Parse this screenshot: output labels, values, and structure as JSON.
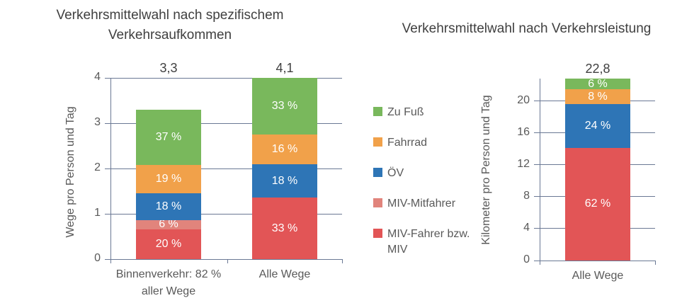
{
  "colors": {
    "green": "#79B85C",
    "orange": "#F1A14A",
    "blue": "#2E75B6",
    "salmon": "#E1847C",
    "red": "#E25556",
    "grid": "#6A7894",
    "title_text": "#404040",
    "axis_text": "#595959",
    "data_label_text": "#FFFFFF"
  },
  "legend": {
    "items": [
      {
        "label": "Zu Fuß",
        "color_key": "green"
      },
      {
        "label": "Fahrrad",
        "color_key": "orange"
      },
      {
        "label": "ÖV",
        "color_key": "blue"
      },
      {
        "label": "MIV-Mitfahrer",
        "color_key": "salmon"
      },
      {
        "label": "MIV-Fahrer bzw. MIV",
        "color_key": "red"
      }
    ]
  },
  "chart_data": [
    {
      "type": "bar",
      "stacked": true,
      "title": "Verkehrsmittelwahl nach spezifischem Verkehrsaufkommen",
      "ylabel": "Wege pro Person und Tag",
      "ylim": [
        0,
        4
      ],
      "ytick_values": [
        0,
        1,
        2,
        3,
        4
      ],
      "ytick_labels": [
        "0",
        "1",
        "2",
        "3",
        "4"
      ],
      "grid": true,
      "categories": [
        {
          "label": "Binnenverkehr: 82 % aller Wege",
          "total": 3.3,
          "total_label": "3,3",
          "segments": [
            {
              "name": "MIV-Fahrer bzw. MIV",
              "color_key": "red",
              "pct": 20,
              "label": "20 %"
            },
            {
              "name": "MIV-Mitfahrer",
              "color_key": "salmon",
              "pct": 6,
              "label": "6 %"
            },
            {
              "name": "ÖV",
              "color_key": "blue",
              "pct": 18,
              "label": "18 %"
            },
            {
              "name": "Fahrrad",
              "color_key": "orange",
              "pct": 19,
              "label": "19 %"
            },
            {
              "name": "Zu Fuß",
              "color_key": "green",
              "pct": 37,
              "label": "37 %"
            }
          ]
        },
        {
          "label": "Alle Wege",
          "total": 4.1,
          "total_label": "4,1",
          "segments": [
            {
              "name": "MIV-Fahrer bzw. MIV",
              "color_key": "red",
              "pct": 33,
              "label": "33 %"
            },
            {
              "name": "ÖV",
              "color_key": "blue",
              "pct": 18,
              "label": "18 %"
            },
            {
              "name": "Fahrrad",
              "color_key": "orange",
              "pct": 16,
              "label": "16 %"
            },
            {
              "name": "Zu Fuß",
              "color_key": "green",
              "pct": 33,
              "label": "33 %"
            }
          ]
        }
      ]
    },
    {
      "type": "bar",
      "stacked": true,
      "title": "Verkehrsmittelwahl nach Verkehrsleistung",
      "ylabel": "Kilometer pro Person und Tag",
      "ylim": [
        0,
        22.8
      ],
      "ytick_values": [
        0,
        4,
        8,
        12,
        16,
        20
      ],
      "ytick_labels": [
        "0",
        "4",
        "8",
        "12",
        "16",
        "20"
      ],
      "grid": true,
      "categories": [
        {
          "label": "Alle Wege",
          "total": 22.8,
          "total_label": "22,8",
          "segments": [
            {
              "name": "MIV-Fahrer bzw. MIV",
              "color_key": "red",
              "pct": 62,
              "label": "62 %"
            },
            {
              "name": "ÖV",
              "color_key": "blue",
              "pct": 24,
              "label": "24 %"
            },
            {
              "name": "Fahrrad",
              "color_key": "orange",
              "pct": 8,
              "label": "8 %"
            },
            {
              "name": "Zu Fuß",
              "color_key": "green",
              "pct": 6,
              "label": "6 %"
            }
          ]
        }
      ]
    }
  ]
}
